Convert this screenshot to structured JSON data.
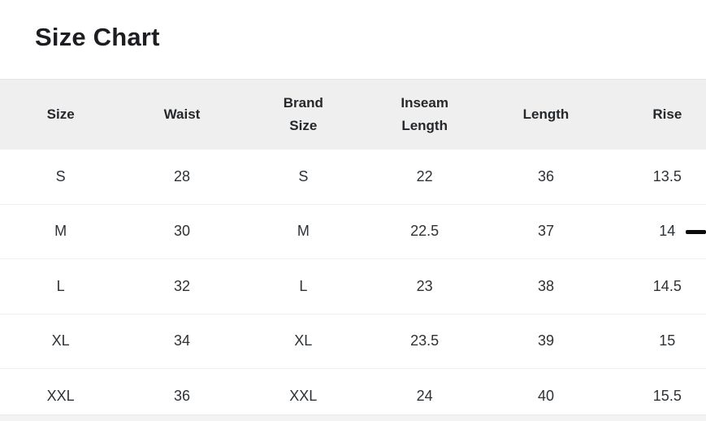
{
  "page": {
    "title": "Size Chart"
  },
  "table": {
    "columns": [
      "Size",
      "Waist",
      "Brand\nSize",
      "Inseam\nLength",
      "Length",
      "Rise"
    ],
    "rows": [
      [
        "S",
        "28",
        "S",
        "22",
        "36",
        "13.5"
      ],
      [
        "M",
        "30",
        "M",
        "22.5",
        "37",
        "14"
      ],
      [
        "L",
        "32",
        "L",
        "23",
        "38",
        "14.5"
      ],
      [
        "XL",
        "34",
        "XL",
        "23.5",
        "39",
        "15"
      ],
      [
        "XXL",
        "36",
        "XXL",
        "24",
        "40",
        "15.5"
      ]
    ]
  },
  "colors": {
    "title_text": "#1c1e22",
    "header_bg": "#efefef",
    "header_text": "#25282b",
    "cell_text": "#2e3236",
    "row_divider": "#f0f0f0",
    "cursor_dash": "#0b0b0b",
    "next_section_bg": "#f3f3f3"
  }
}
